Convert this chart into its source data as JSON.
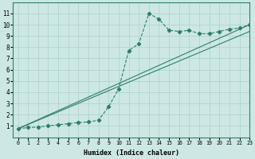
{
  "xlabel": "Humidex (Indice chaleur)",
  "ylabel": "",
  "xlim": [
    -0.5,
    23
  ],
  "ylim": [
    0,
    12
  ],
  "xticks": [
    0,
    1,
    2,
    3,
    4,
    5,
    6,
    7,
    8,
    9,
    10,
    11,
    12,
    13,
    14,
    15,
    16,
    17,
    18,
    19,
    20,
    21,
    22,
    23
  ],
  "yticks": [
    1,
    2,
    3,
    4,
    5,
    6,
    7,
    8,
    9,
    10,
    11
  ],
  "bg_color": "#cde8e4",
  "grid_color": "#b0d4d0",
  "line_color": "#2e7d6e",
  "curve1_x": [
    0,
    1,
    2,
    3,
    4,
    5,
    6,
    7,
    8,
    9,
    10,
    11,
    12,
    13,
    14,
    15,
    16,
    17,
    18,
    19,
    20,
    21,
    22,
    23
  ],
  "curve1_y": [
    0.75,
    0.85,
    0.9,
    1.0,
    1.1,
    1.2,
    1.3,
    1.35,
    1.5,
    2.7,
    4.3,
    7.7,
    8.3,
    11.0,
    10.5,
    9.5,
    9.4,
    9.5,
    9.2,
    9.2,
    9.4,
    9.6,
    9.7,
    10.0
  ],
  "curve2_x": [
    0,
    23
  ],
  "curve2_y": [
    0.75,
    10.0
  ],
  "curve3_x": [
    0,
    23
  ],
  "curve3_y": [
    0.75,
    9.4
  ],
  "marker": "D",
  "marker_size": 2.2
}
